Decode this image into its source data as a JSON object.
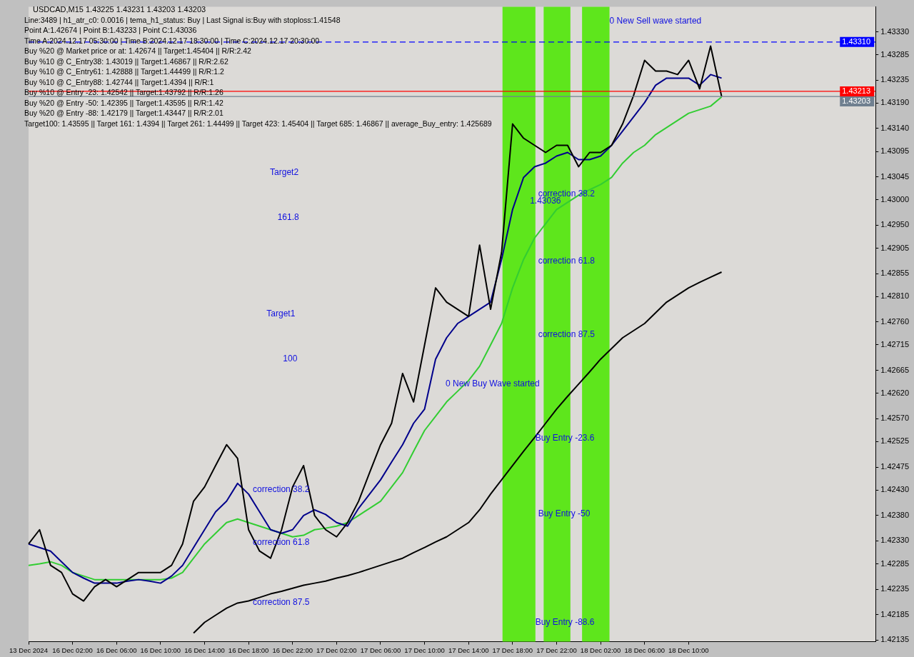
{
  "chart_data": {
    "type": "line",
    "title": "USDCAD,M15  1.43225 1.43231 1.43203 1.43203",
    "categories": [
      "13 Dec 2024",
      null,
      null,
      null,
      "16 Dec 02:00",
      null,
      null,
      null,
      "16 Dec 06:00",
      null,
      null,
      null,
      "16 Dec 10:00",
      null,
      null,
      null,
      "16 Dec 14:00",
      null,
      null,
      null,
      "16 Dec 18:00",
      null,
      null,
      null,
      "16 Dec 22:00",
      null,
      null,
      null,
      "17 Dec 02:00",
      null,
      null,
      null,
      "17 Dec 06:00",
      null,
      null,
      null,
      "17 Dec 10:00",
      null,
      null,
      null,
      "17 Dec 14:00",
      null,
      null,
      null,
      "17 Dec 18:00",
      null,
      null,
      null,
      "17 Dec 22:00",
      null,
      null,
      null,
      "18 Dec 02:00",
      null,
      null,
      null,
      "18 Dec 06:00",
      null,
      null,
      null,
      "18 Dec 10:00",
      null,
      null,
      null,
      null,
      null,
      null,
      null,
      null,
      null,
      null,
      null,
      null,
      null,
      null,
      null,
      null,
      null
    ],
    "ylim": [
      1.42132,
      1.43379
    ],
    "yticks": [
      {
        "value": 1.4333,
        "label": "1.43330"
      },
      {
        "value": 1.43285,
        "label": "1.43285"
      },
      {
        "value": 1.43235,
        "label": "1.43235"
      },
      {
        "value": 1.4319,
        "label": "1.43190"
      },
      {
        "value": 1.4314,
        "label": "1.43140"
      },
      {
        "value": 1.43095,
        "label": "1.43095"
      },
      {
        "value": 1.43045,
        "label": "1.43045"
      },
      {
        "value": 1.43,
        "label": "1.43000"
      },
      {
        "value": 1.4295,
        "label": "1.42950"
      },
      {
        "value": 1.42905,
        "label": "1.42905"
      },
      {
        "value": 1.42855,
        "label": "1.42855"
      },
      {
        "value": 1.4281,
        "label": "1.42810"
      },
      {
        "value": 1.4276,
        "label": "1.42760"
      },
      {
        "value": 1.42715,
        "label": "1.42715"
      },
      {
        "value": 1.42665,
        "label": "1.42665"
      },
      {
        "value": 1.4262,
        "label": "1.42620"
      },
      {
        "value": 1.4257,
        "label": "1.42570"
      },
      {
        "value": 1.42525,
        "label": "1.42525"
      },
      {
        "value": 1.42475,
        "label": "1.42475"
      },
      {
        "value": 1.4243,
        "label": "1.42430"
      },
      {
        "value": 1.4238,
        "label": "1.42380"
      },
      {
        "value": 1.4233,
        "label": "1.42330"
      },
      {
        "value": 1.42285,
        "label": "1.42285"
      },
      {
        "value": 1.42235,
        "label": "1.42235"
      },
      {
        "value": 1.42185,
        "label": "1.42185"
      },
      {
        "value": 1.42135,
        "label": "1.42135"
      }
    ],
    "legend": false,
    "marker": "none",
    "line_style": "solid",
    "series": [
      {
        "color": "#000000",
        "values": [
          1.42324,
          1.42352,
          1.42282,
          1.42268,
          1.42226,
          1.42212,
          1.4224,
          1.42254,
          1.4224,
          1.42254,
          1.42268,
          1.42268,
          1.42268,
          1.42282,
          1.42324,
          1.42408,
          1.42436,
          1.42478,
          1.42519,
          1.42492,
          1.42352,
          1.4231,
          1.42296,
          1.42352,
          1.42436,
          1.42478,
          1.4238,
          1.42352,
          1.42338,
          1.42366,
          1.42408,
          1.42464,
          1.42519,
          1.42561,
          1.42659,
          1.42603,
          1.42715,
          1.42827,
          1.42799,
          1.42785,
          1.42771,
          1.42911,
          1.42785,
          1.42897,
          1.43149,
          1.43121,
          1.43107,
          1.43093,
          1.43107,
          1.43107,
          1.43065,
          1.43093,
          1.43093,
          1.43107,
          1.43149,
          1.43205,
          1.43274,
          1.43253,
          1.43253,
          1.43246,
          1.43274,
          1.43218,
          1.43302,
          1.43203,
          null,
          null,
          null,
          null,
          null,
          null,
          null,
          null,
          null,
          null,
          null,
          null,
          null,
          null
        ]
      },
      {
        "color": "#00008b",
        "values": [
          1.42324,
          1.42317,
          1.4231,
          1.42289,
          1.42268,
          1.42257,
          1.42247,
          1.42247,
          1.42247,
          1.42251,
          1.42254,
          1.42251,
          1.42247,
          1.42261,
          1.42282,
          1.42317,
          1.42352,
          1.42387,
          1.42408,
          1.42443,
          1.42422,
          1.42387,
          1.42352,
          1.42345,
          1.42352,
          1.4238,
          1.42391,
          1.42382,
          1.42366,
          1.42359,
          1.42394,
          1.42422,
          1.4245,
          1.42485,
          1.42519,
          1.42561,
          1.42589,
          1.42687,
          1.42729,
          1.42757,
          1.42771,
          1.42785,
          1.42799,
          1.42883,
          1.42981,
          1.43044,
          1.43065,
          1.43072,
          1.43086,
          1.43093,
          1.43079,
          1.43079,
          1.43086,
          1.43107,
          1.43135,
          1.43163,
          1.43191,
          1.43225,
          1.43239,
          1.43239,
          1.43239,
          1.43225,
          1.43246,
          1.43239,
          null,
          null,
          null,
          null,
          null,
          null,
          null,
          null,
          null,
          null,
          null,
          null,
          null,
          null
        ]
      },
      {
        "color": "#32cd32",
        "values": [
          1.42282,
          1.42285,
          1.42289,
          1.42282,
          1.42268,
          1.42261,
          1.42254,
          1.42254,
          1.42254,
          1.42254,
          1.42254,
          1.42254,
          1.42254,
          1.42257,
          1.42268,
          1.42296,
          1.42324,
          1.42345,
          1.42366,
          1.42373,
          1.42366,
          1.42359,
          1.42352,
          1.42345,
          1.42338,
          1.42341,
          1.42352,
          1.42355,
          1.42359,
          1.42366,
          1.4238,
          1.42394,
          1.42408,
          1.42436,
          1.42464,
          1.42506,
          1.42547,
          1.42575,
          1.42603,
          1.42624,
          1.42645,
          1.42673,
          1.42715,
          1.42757,
          1.42827,
          1.42883,
          1.42925,
          1.42953,
          1.42981,
          1.42995,
          1.43009,
          1.4302,
          1.4303,
          1.43044,
          1.43072,
          1.43093,
          1.43107,
          1.43128,
          1.43142,
          1.43156,
          1.4317,
          1.43177,
          1.43184,
          1.43202,
          null,
          null,
          null,
          null,
          null,
          null,
          null,
          null,
          null,
          null,
          null,
          null,
          null,
          null
        ]
      },
      {
        "color": "#000000",
        "values": [
          null,
          null,
          null,
          null,
          null,
          null,
          null,
          null,
          null,
          null,
          null,
          null,
          null,
          null,
          null,
          1.42149,
          1.4217,
          1.42184,
          1.42198,
          1.42208,
          1.42212,
          1.42219,
          1.42226,
          1.42231,
          1.42237,
          1.42243,
          1.42247,
          1.42251,
          1.42257,
          1.42262,
          1.42268,
          1.42275,
          1.42282,
          1.42289,
          1.42296,
          1.42307,
          1.42317,
          1.42328,
          1.42338,
          1.42352,
          1.42366,
          1.42391,
          1.42422,
          1.4245,
          1.42478,
          1.42506,
          1.42533,
          1.42561,
          1.42589,
          1.42614,
          1.42638,
          1.42662,
          1.42687,
          1.42708,
          1.42729,
          1.42743,
          1.42757,
          1.42778,
          1.42799,
          1.42813,
          1.42827,
          1.42838,
          1.42848,
          1.42858,
          null,
          null,
          null,
          null,
          null,
          null,
          null,
          null,
          null,
          null,
          null,
          null,
          null,
          null
        ]
      }
    ],
    "ref_lines": [
      {
        "axis": "y",
        "value": 1.4331,
        "label": "1.43310",
        "color": "#0000ff",
        "line_style": "dashed"
      },
      {
        "axis": "y",
        "value": 1.43213,
        "label": "1.43213",
        "color": "#ff0000",
        "line_style": "solid"
      },
      {
        "axis": "y",
        "value": 1.43203,
        "label": "1.43203",
        "color": "#708090",
        "line_style": "solid"
      }
    ],
    "annotations": [
      "Line:3489 | h1_atr_c0: 0.0016 | tema_h1_status: Buy | Last Signal is:Buy with stoploss:1.41548",
      "Point A:1.42674 | Point B:1.43233 | Point C:1.43036",
      "Time A:2024.12.17 05:30:00 | Time B:2024.12.17 18:30:00 | Time C:2024.12.17 20:30:00",
      "Buy %20 @ Market price or at: 1.42674 || Target:1.45404 || R/R:2.42",
      "Buy %10 @ C_Entry38: 1.43019 || Target:1.46867 || R/R:2.62",
      "Buy %10 @ C_Entry61: 1.42888 || Target:1.44499 || R/R:1.2",
      "Buy %10 @ C_Entry88: 1.42744 || Target:1.4394 || R/R:1",
      "Buy %10 @ Entry -23: 1.42542 || Target:1.43792 || R/R:1.26",
      "Buy %20 @ Entry -50: 1.42395 || Target:1.43595 || R/R:1.42",
      "Buy %20 @ Entry -88: 1.42179 || Target:1.43447 || R/R:2.01",
      "Target100: 1.43595 || Target 161: 1.4394 || Target 261: 1.44499 || Target 423: 1.45404 || Target 685: 1.46867 || average_Buy_entry: 1.425689",
      "Target2",
      "161.8",
      "Target1",
      "100",
      "correction 38.2",
      "1.43036",
      "correction 61.8",
      "correction 87.5",
      "0 New Buy Wave started",
      "Buy Entry -23.6",
      "Buy Entry -50",
      "Buy Entry -88.6",
      "0 New Sell wave started",
      "correction 38.2",
      "correction 61.8",
      "correction 87.5"
    ]
  }
}
